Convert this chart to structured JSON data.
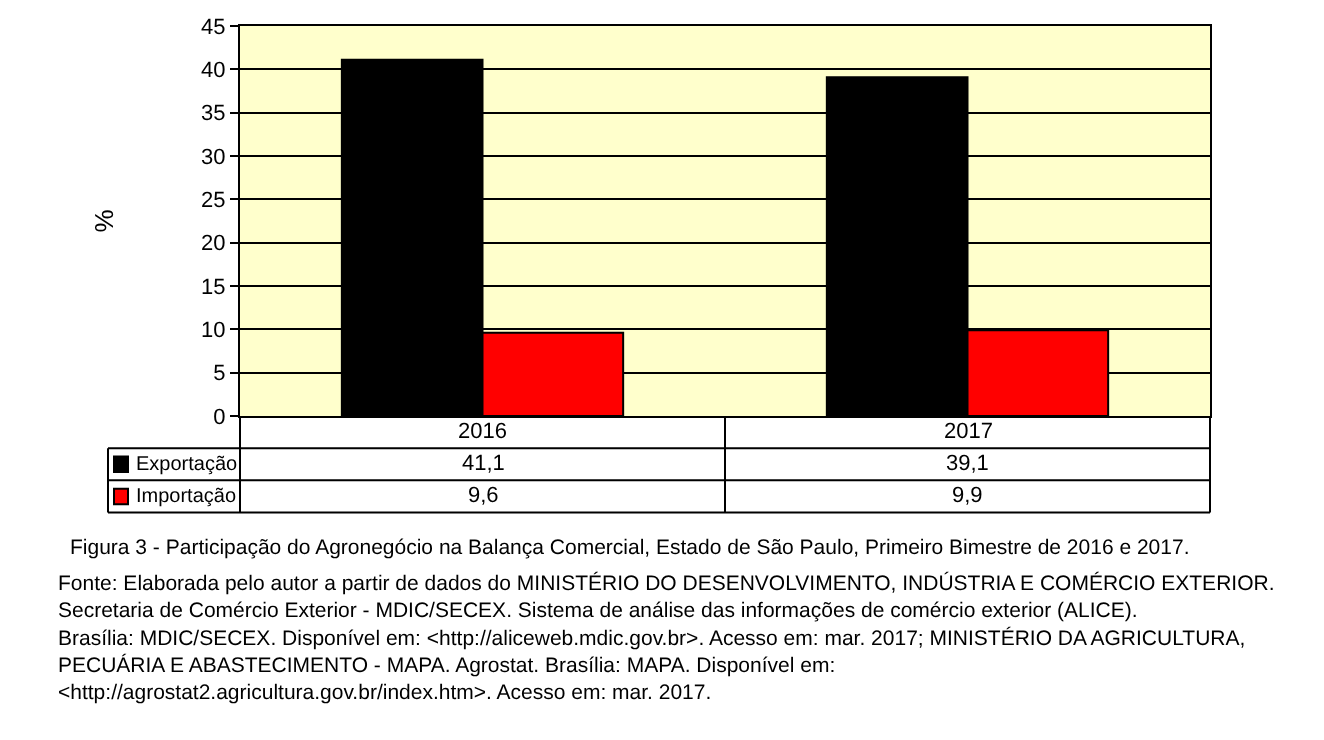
{
  "chart_data": {
    "type": "bar",
    "title": "Figura 3 - Participação do Agronegócio na Balança Comercial, Estado de São Paulo, Primeiro Bimestre de 2016 e 2017.",
    "ylabel": "%",
    "categories": [
      "2016",
      "2017"
    ],
    "series": [
      {
        "name": "Exportação",
        "color": "#000000",
        "values": [
          41.1,
          39.1
        ],
        "value_labels": [
          "41,1",
          "39,1"
        ]
      },
      {
        "name": "Importação",
        "color": "#ff0000",
        "values": [
          9.6,
          9.9
        ],
        "value_labels": [
          "9,6",
          "9,9"
        ]
      }
    ],
    "ylim": [
      0,
      45
    ],
    "yticks": [
      0,
      5,
      10,
      15,
      20,
      25,
      30,
      35,
      40,
      45
    ],
    "grid": "y",
    "legend": "bottom",
    "annotations": [
      "Fonte: Elaborada pelo autor a partir de dados do MINISTÉRIO DO DESENVOLVIMENTO, INDÚSTRIA E COMÉRCIO EXTERIOR. Secretaria de Comércio Exterior - MDIC/SECEX. Sistema de análise das informações de comércio exterior (ALICE). Brasília: MDIC/SECEX. Disponível em: <http://aliceweb.mdic.gov.br>. Acesso em: mar. 2017; MINISTÉRIO DA AGRICULTURA, PECUÁRIA E ABASTECIMENTO - MAPA. Agrostat. Brasília: MAPA. Disponível em: <http://agrostat2.agricultura.gov.br/index.htm>. Acesso em: mar. 2017."
    ]
  }
}
